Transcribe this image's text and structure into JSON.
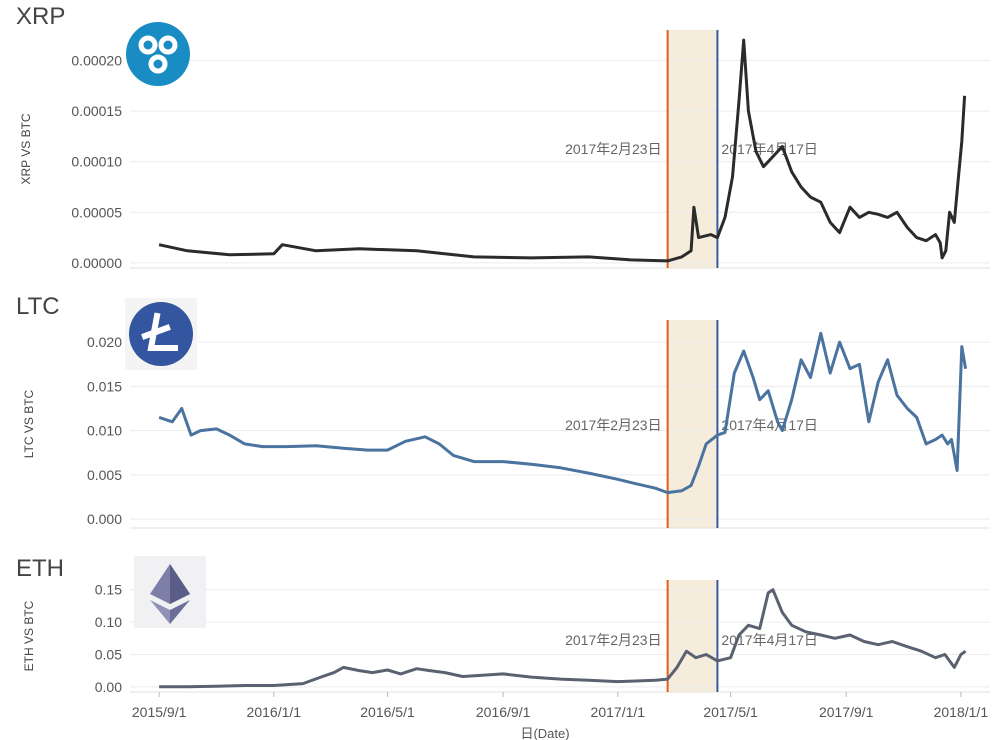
{
  "colors": {
    "xrp": "#2b2b2b",
    "ltc": "#4a73a0",
    "eth": "#5a6270",
    "event_line_1": "#e0601a",
    "event_line_2": "#3a5aa0",
    "band": "#f5ecdc",
    "grid": "#ececec",
    "tick_text": "#555555"
  },
  "x_axis": {
    "label": "日(Date)",
    "ticks": [
      "2015/9/1",
      "2016/1/1",
      "2016/5/1",
      "2016/9/1",
      "2017/1/1",
      "2017/5/1",
      "2017/9/1",
      "2018/1/1"
    ]
  },
  "annotations": {
    "date_1": "2017年2月23日",
    "date_2": "2017年4月17日"
  },
  "chart_data": [
    {
      "type": "line",
      "title": "XRP",
      "icon": "ripple-logo-icon",
      "ylabel": "XRP VS BTC",
      "ylim": [
        -5e-06,
        0.00023
      ],
      "yticks": [
        "0.00000",
        "0.00005",
        "0.00010",
        "0.00015",
        "0.00020"
      ],
      "ytick_values": [
        0,
        5e-05,
        0.0001,
        0.00015,
        0.0002
      ],
      "x_range": [
        "2015-08-01",
        "2018-02-01"
      ],
      "event_dates": [
        "2017-02-23",
        "2017-04-17"
      ],
      "series": [
        {
          "x": [
            "2015-09-01",
            "2015-10-01",
            "2015-11-15",
            "2016-01-01",
            "2016-01-10",
            "2016-02-15",
            "2016-04-01",
            "2016-06-01",
            "2016-08-01",
            "2016-10-01",
            "2016-12-01",
            "2017-01-15",
            "2017-02-23",
            "2017-03-10",
            "2017-03-20",
            "2017-03-23",
            "2017-03-28",
            "2017-04-10",
            "2017-04-17",
            "2017-04-25",
            "2017-05-03",
            "2017-05-10",
            "2017-05-15",
            "2017-05-20",
            "2017-05-28",
            "2017-06-05",
            "2017-06-15",
            "2017-06-25",
            "2017-07-05",
            "2017-07-15",
            "2017-07-25",
            "2017-08-05",
            "2017-08-15",
            "2017-08-25",
            "2017-09-05",
            "2017-09-15",
            "2017-09-25",
            "2017-10-05",
            "2017-10-15",
            "2017-10-25",
            "2017-11-05",
            "2017-11-15",
            "2017-11-25",
            "2017-12-05",
            "2017-12-10",
            "2017-12-12",
            "2017-12-16",
            "2017-12-20",
            "2017-12-25",
            "2017-12-29",
            "2018-01-02",
            "2018-01-05"
          ],
          "y": [
            1.8e-05,
            1.2e-05,
            8e-06,
            9e-06,
            1.8e-05,
            1.2e-05,
            1.4e-05,
            1.2e-05,
            6e-06,
            5e-06,
            6e-06,
            3e-06,
            2e-06,
            6e-06,
            1.2e-05,
            5.5e-05,
            2.5e-05,
            2.8e-05,
            2.5e-05,
            4.5e-05,
            8.5e-05,
            0.00016,
            0.00022,
            0.00015,
            0.00011,
            9.5e-05,
            0.000105,
            0.000115,
            9e-05,
            7.5e-05,
            6.5e-05,
            6e-05,
            4e-05,
            3e-05,
            5.5e-05,
            4.5e-05,
            5e-05,
            4.8e-05,
            4.5e-05,
            5e-05,
            3.5e-05,
            2.5e-05,
            2.2e-05,
            2.8e-05,
            2e-05,
            5e-06,
            1.2e-05,
            5e-05,
            4e-05,
            8e-05,
            0.00012,
            0.000165
          ]
        }
      ]
    },
    {
      "type": "line",
      "title": "LTC",
      "icon": "litecoin-logo-icon",
      "ylabel": "LTC VS BTC",
      "ylim": [
        -0.001,
        0.0225
      ],
      "yticks": [
        "0.000",
        "0.005",
        "0.010",
        "0.015",
        "0.020"
      ],
      "ytick_values": [
        0,
        0.005,
        0.01,
        0.015,
        0.02
      ],
      "x_range": [
        "2015-08-01",
        "2018-02-01"
      ],
      "event_dates": [
        "2017-02-23",
        "2017-04-17"
      ],
      "series": [
        {
          "x": [
            "2015-09-01",
            "2015-09-15",
            "2015-09-25",
            "2015-10-05",
            "2015-10-15",
            "2015-11-01",
            "2015-11-15",
            "2015-12-01",
            "2015-12-20",
            "2016-01-15",
            "2016-02-15",
            "2016-03-15",
            "2016-04-10",
            "2016-05-01",
            "2016-05-20",
            "2016-06-10",
            "2016-06-25",
            "2016-07-10",
            "2016-08-01",
            "2016-09-01",
            "2016-10-01",
            "2016-11-01",
            "2016-12-01",
            "2017-01-01",
            "2017-01-20",
            "2017-02-10",
            "2017-02-23",
            "2017-03-10",
            "2017-03-20",
            "2017-03-28",
            "2017-04-05",
            "2017-04-17",
            "2017-04-25",
            "2017-05-05",
            "2017-05-15",
            "2017-05-25",
            "2017-06-01",
            "2017-06-10",
            "2017-06-20",
            "2017-06-25",
            "2017-07-05",
            "2017-07-15",
            "2017-07-25",
            "2017-08-05",
            "2017-08-15",
            "2017-08-25",
            "2017-09-05",
            "2017-09-15",
            "2017-09-25",
            "2017-10-05",
            "2017-10-15",
            "2017-10-25",
            "2017-11-05",
            "2017-11-15",
            "2017-11-25",
            "2017-12-05",
            "2017-12-12",
            "2017-12-18",
            "2017-12-22",
            "2017-12-28",
            "2018-01-02",
            "2018-01-06"
          ],
          "y": [
            0.0115,
            0.011,
            0.0125,
            0.0095,
            0.01,
            0.0102,
            0.0095,
            0.0085,
            0.0082,
            0.0082,
            0.0083,
            0.008,
            0.0078,
            0.0078,
            0.0088,
            0.0093,
            0.0085,
            0.0072,
            0.0065,
            0.0065,
            0.0062,
            0.0058,
            0.0052,
            0.0045,
            0.004,
            0.0035,
            0.003,
            0.0032,
            0.0038,
            0.006,
            0.0085,
            0.0095,
            0.0098,
            0.0165,
            0.019,
            0.016,
            0.0135,
            0.0145,
            0.011,
            0.01,
            0.0135,
            0.018,
            0.016,
            0.021,
            0.0165,
            0.02,
            0.017,
            0.0175,
            0.011,
            0.0155,
            0.018,
            0.014,
            0.0125,
            0.0115,
            0.0085,
            0.009,
            0.0095,
            0.0085,
            0.009,
            0.0055,
            0.0195,
            0.017
          ]
        }
      ]
    },
    {
      "type": "line",
      "title": "ETH",
      "icon": "ethereum-logo-icon",
      "ylabel": "ETH VS BTC",
      "ylim": [
        -0.008,
        0.165
      ],
      "yticks": [
        "0.00",
        "0.05",
        "0.10",
        "0.15"
      ],
      "ytick_values": [
        0,
        0.05,
        0.1,
        0.15
      ],
      "x_range": [
        "2015-08-01",
        "2018-02-01"
      ],
      "event_dates": [
        "2017-02-23",
        "2017-04-17"
      ],
      "series": [
        {
          "x": [
            "2015-09-01",
            "2015-10-01",
            "2015-11-01",
            "2015-12-01",
            "2016-01-01",
            "2016-02-01",
            "2016-02-20",
            "2016-03-05",
            "2016-03-15",
            "2016-04-01",
            "2016-04-15",
            "2016-05-01",
            "2016-05-15",
            "2016-06-01",
            "2016-06-15",
            "2016-07-01",
            "2016-07-20",
            "2016-08-10",
            "2016-09-01",
            "2016-10-01",
            "2016-11-01",
            "2016-12-01",
            "2017-01-01",
            "2017-01-20",
            "2017-02-10",
            "2017-02-23",
            "2017-03-05",
            "2017-03-15",
            "2017-03-25",
            "2017-04-05",
            "2017-04-17",
            "2017-05-01",
            "2017-05-10",
            "2017-05-20",
            "2017-06-01",
            "2017-06-10",
            "2017-06-15",
            "2017-06-25",
            "2017-07-05",
            "2017-07-20",
            "2017-08-05",
            "2017-08-20",
            "2017-09-05",
            "2017-09-20",
            "2017-10-05",
            "2017-10-20",
            "2017-11-05",
            "2017-11-20",
            "2017-12-05",
            "2017-12-15",
            "2017-12-25",
            "2018-01-01",
            "2018-01-06"
          ],
          "y": [
            0.0,
            0.0,
            0.001,
            0.002,
            0.002,
            0.005,
            0.015,
            0.022,
            0.03,
            0.025,
            0.022,
            0.026,
            0.02,
            0.028,
            0.025,
            0.022,
            0.016,
            0.018,
            0.02,
            0.015,
            0.012,
            0.01,
            0.008,
            0.009,
            0.01,
            0.012,
            0.03,
            0.055,
            0.045,
            0.05,
            0.04,
            0.045,
            0.08,
            0.095,
            0.09,
            0.145,
            0.15,
            0.115,
            0.095,
            0.085,
            0.08,
            0.075,
            0.08,
            0.07,
            0.065,
            0.07,
            0.062,
            0.055,
            0.045,
            0.05,
            0.03,
            0.05,
            0.055
          ]
        }
      ]
    }
  ]
}
